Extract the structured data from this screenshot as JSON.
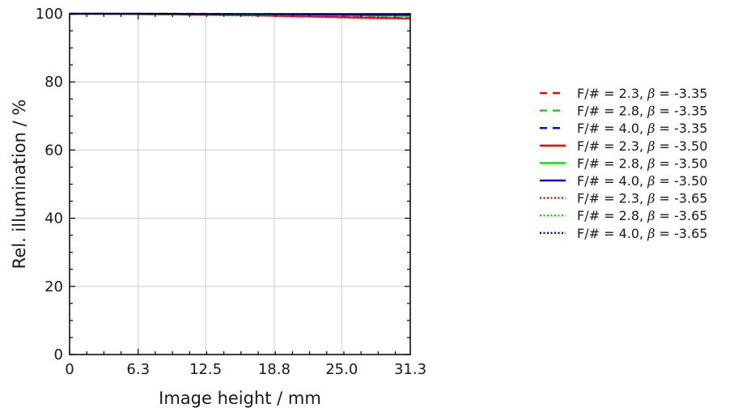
{
  "chart_data": {
    "type": "line",
    "xlabel": "Image height / mm",
    "ylabel": "Rel. illumination / %",
    "xlim": [
      0,
      31.3
    ],
    "ylim": [
      0,
      100
    ],
    "xticks": [
      0,
      6.3,
      12.5,
      18.8,
      25.0,
      31.3
    ],
    "xtick_labels": [
      "0",
      "6.3",
      "12.5",
      "18.8",
      "25.0",
      "31.3"
    ],
    "yticks": [
      0,
      20,
      40,
      60,
      80,
      100
    ],
    "ytick_labels": [
      "0",
      "20",
      "40",
      "60",
      "80",
      "100"
    ],
    "grid": true,
    "legend_position": "right",
    "x": [
      0,
      3.13,
      6.26,
      9.39,
      12.52,
      15.65,
      18.78,
      21.91,
      25.04,
      28.17,
      31.3
    ],
    "series": [
      {
        "name": "F/# = 2.3,  β = -3.35",
        "color": "#ff0000",
        "dash": "dashed",
        "values": [
          100,
          100,
          99.9,
          99.8,
          99.7,
          99.6,
          99.5,
          99.3,
          99.1,
          98.9,
          98.7
        ]
      },
      {
        "name": "F/# = 2.8,  β = -3.35",
        "color": "#00e000",
        "dash": "dashed",
        "values": [
          100,
          100,
          100,
          99.9,
          99.9,
          99.9,
          99.8,
          99.7,
          99.6,
          99.5,
          99.4
        ]
      },
      {
        "name": "F/# = 4.0,  β = -3.35",
        "color": "#0000dd",
        "dash": "dashed",
        "values": [
          100,
          100,
          100,
          100,
          100,
          99.9,
          99.9,
          99.9,
          99.8,
          99.8,
          99.7
        ]
      },
      {
        "name": "F/# = 2.3,  β = -3.50",
        "color": "#ff0000",
        "dash": "solid",
        "values": [
          100,
          100,
          99.9,
          99.8,
          99.7,
          99.6,
          99.4,
          99.2,
          99.0,
          98.8,
          98.6
        ]
      },
      {
        "name": "F/# = 2.8,  β = -3.50",
        "color": "#00e000",
        "dash": "solid",
        "values": [
          100,
          100,
          100,
          99.9,
          99.9,
          99.8,
          99.8,
          99.7,
          99.6,
          99.5,
          99.4
        ]
      },
      {
        "name": "F/# = 4.0,  β = -3.50",
        "color": "#0000dd",
        "dash": "solid",
        "values": [
          100,
          100,
          100,
          100,
          99.9,
          99.9,
          99.9,
          99.8,
          99.8,
          99.7,
          99.7
        ]
      },
      {
        "name": "F/# = 2.3,  β = -3.65",
        "color": "#ff0000",
        "dash": "dotted",
        "values": [
          100,
          100,
          99.9,
          99.8,
          99.7,
          99.5,
          99.4,
          99.2,
          98.9,
          98.7,
          98.5
        ]
      },
      {
        "name": "F/# = 2.8,  β = -3.65",
        "color": "#00e000",
        "dash": "dotted",
        "values": [
          100,
          100,
          100,
          99.9,
          99.9,
          99.8,
          99.7,
          99.6,
          99.5,
          99.4,
          99.3
        ]
      },
      {
        "name": "F/# = 4.0,  β = -3.65",
        "color": "#0000dd",
        "dash": "dotted",
        "values": [
          100,
          100,
          100,
          100,
          99.9,
          99.9,
          99.8,
          99.8,
          99.7,
          99.7,
          99.6
        ]
      }
    ]
  }
}
